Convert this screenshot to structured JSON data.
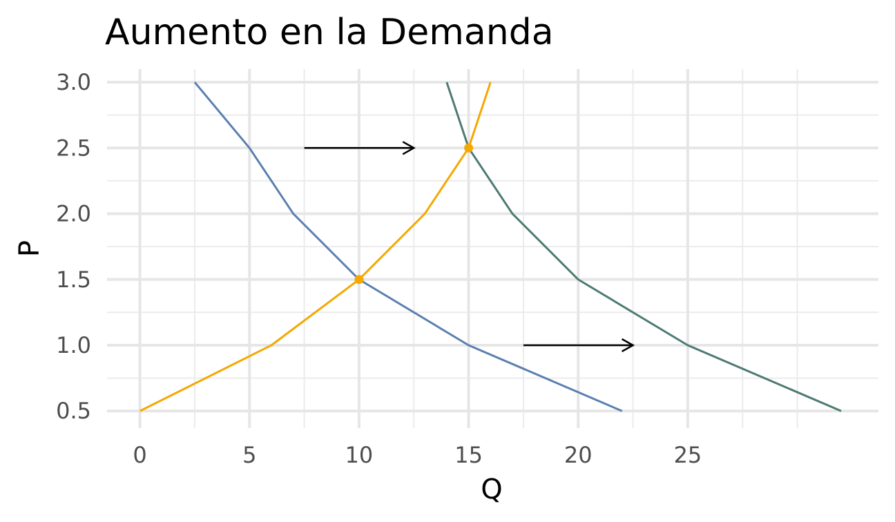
{
  "chart_data": {
    "type": "line",
    "title": "Aumento en la Demanda",
    "xlabel": "Q",
    "ylabel": "P",
    "xlim": [
      -1.5,
      33.7
    ],
    "ylim": [
      0.37,
      3.1
    ],
    "x_ticks": [
      "0",
      "5",
      "10",
      "15",
      "20",
      "25"
    ],
    "x_tick_values": [
      0,
      5,
      10,
      15,
      20,
      25
    ],
    "x_minor_values": [
      2.5,
      7.5,
      12.5,
      17.5,
      22.5,
      27.5,
      30
    ],
    "y_ticks": [
      "0.5",
      "1.0",
      "1.5",
      "2.0",
      "2.5",
      "3.0"
    ],
    "y_tick_values": [
      0.5,
      1.0,
      1.5,
      2.0,
      2.5,
      3.0
    ],
    "y_minor_values": [
      0.75,
      1.25,
      1.75,
      2.25,
      2.75
    ],
    "grid": true,
    "series": [
      {
        "color": "#5b7fb0",
        "points": [
          [
            2.5,
            3.0
          ],
          [
            5,
            2.5
          ],
          [
            7,
            2.0
          ],
          [
            10,
            1.5
          ],
          [
            15,
            1.0
          ],
          [
            22,
            0.5
          ]
        ]
      },
      {
        "color": "#4e7a73",
        "points": [
          [
            14,
            3.0
          ],
          [
            15,
            2.5
          ],
          [
            17,
            2.0
          ],
          [
            20,
            1.5
          ],
          [
            25,
            1.0
          ],
          [
            32,
            0.5
          ]
        ]
      },
      {
        "color": "#f5a800",
        "points": [
          [
            0,
            0.5
          ],
          [
            6,
            1.0
          ],
          [
            10,
            1.5
          ],
          [
            13,
            2.0
          ],
          [
            15,
            2.5
          ],
          [
            16,
            3.0
          ]
        ]
      }
    ],
    "equilibrium_points": {
      "color": "#f5a800",
      "points": [
        [
          10,
          1.5
        ],
        [
          15,
          2.5
        ]
      ]
    },
    "arrows": [
      {
        "from": [
          7.5,
          2.5
        ],
        "to": [
          12.5,
          2.5
        ]
      },
      {
        "from": [
          17.5,
          1.0
        ],
        "to": [
          22.5,
          1.0
        ]
      }
    ]
  }
}
